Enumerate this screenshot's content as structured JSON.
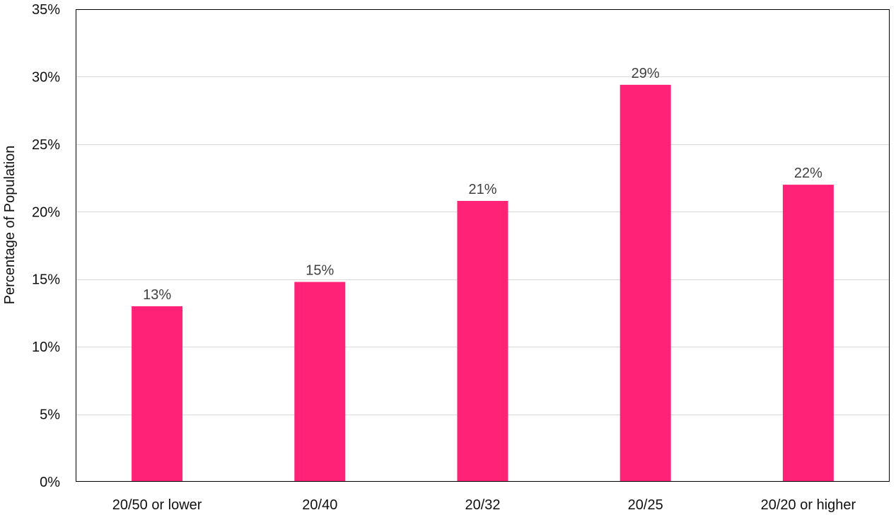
{
  "chart_data": {
    "type": "bar",
    "title": "",
    "xlabel": "",
    "ylabel": "Percentage of Population",
    "categories": [
      "20/50 or lower",
      "20/40",
      "20/32",
      "20/25",
      "20/20 or higher"
    ],
    "values": [
      13,
      14.8,
      20.8,
      29.4,
      22
    ],
    "data_labels": [
      "13%",
      "15%",
      "21%",
      "29%",
      "22%"
    ],
    "ylim": [
      0,
      35
    ],
    "yticks": [
      0,
      5,
      10,
      15,
      20,
      25,
      30,
      35
    ],
    "ytick_labels": [
      "0%",
      "5%",
      "10%",
      "15%",
      "20%",
      "25%",
      "30%",
      "35%"
    ],
    "grid": true,
    "legend": "none",
    "bar_color": "#FF2277",
    "grid_color": "#D9D9D9",
    "frame_color": "#000000"
  }
}
